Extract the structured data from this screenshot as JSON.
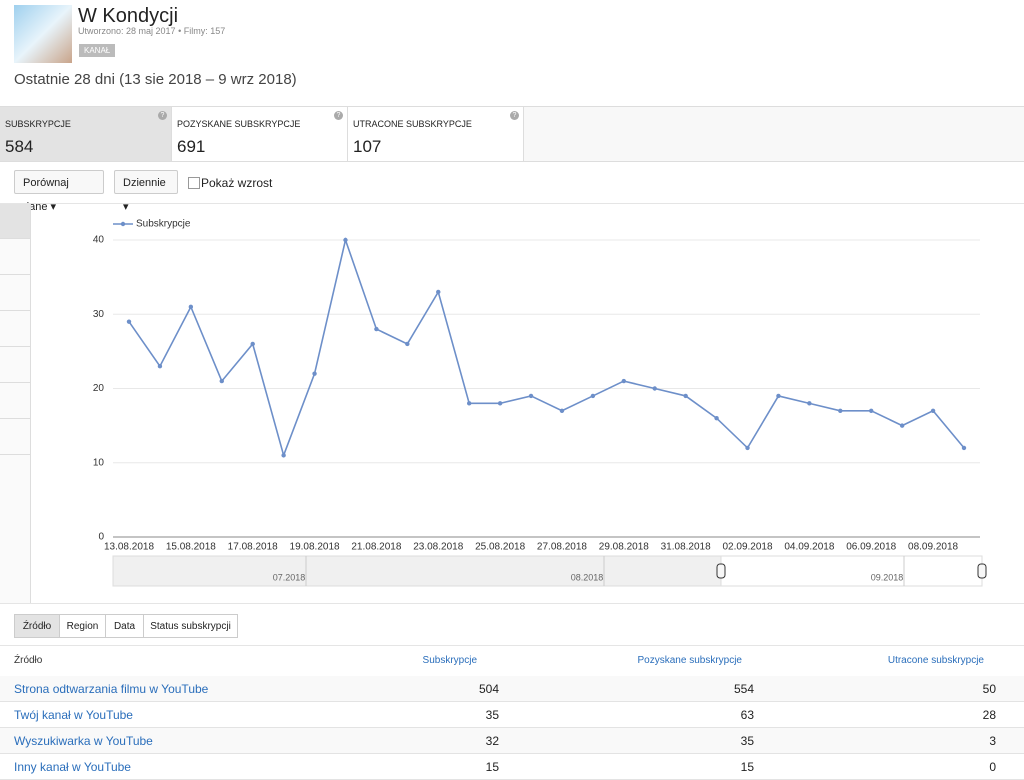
{
  "header": {
    "title": "W Kondycji",
    "created": "Utworzono: 28 maj 2017",
    "videos": "Filmy: 157",
    "badge": "KANAŁ",
    "period": "Ostatnie 28 dni (13 sie 2018 – 9 wrz 2018)"
  },
  "metrics": [
    {
      "label": "SUBSKRYPCJE",
      "value": "584"
    },
    {
      "label": "POZYSKANE SUBSKRYPCJE",
      "value": "691"
    },
    {
      "label": "UTRACONE SUBSKRYPCJE",
      "value": "107"
    }
  ],
  "controls": {
    "compare": "Porównaj dane",
    "interval": "Dziennie",
    "growth": "Pokaż wzrost"
  },
  "chart_data": {
    "type": "line",
    "categories": [
      "13.08.2018",
      null,
      "15.08.2018",
      null,
      "17.08.2018",
      null,
      "19.08.2018",
      null,
      "21.08.2018",
      null,
      "23.08.2018",
      null,
      "25.08.2018",
      null,
      "27.08.2018",
      null,
      "29.08.2018",
      null,
      "31.08.2018",
      null,
      "02.09.2018",
      null,
      "04.09.2018",
      null,
      "06.09.2018",
      null,
      "08.09.2018",
      null
    ],
    "series": [
      {
        "name": "Subskrypcje",
        "color": "#6d8fc9",
        "values": [
          29,
          23,
          31,
          21,
          26,
          11,
          22,
          40,
          28,
          26,
          33,
          18,
          18,
          19,
          17,
          19,
          21,
          20,
          19,
          16,
          12,
          19,
          18,
          17,
          17,
          15,
          17,
          12
        ]
      }
    ],
    "ylim": [
      0,
      40
    ],
    "yticks": [
      0,
      10,
      20,
      30,
      40
    ],
    "grid": true
  },
  "navigator": {
    "labels": [
      "07.2018",
      "08.2018",
      "09.2018"
    ]
  },
  "tabs": [
    "Źródło",
    "Region",
    "Data",
    "Status subskrypcji"
  ],
  "table": {
    "columns": [
      "Źródło",
      "Subskrypcje",
      "Pozyskane subskrypcje",
      "Utracone subskrypcje"
    ],
    "rows": [
      [
        "Strona odtwarzania filmu w YouTube",
        504,
        554,
        50
      ],
      [
        "Twój kanał w YouTube",
        35,
        63,
        28
      ],
      [
        "Wyszukiwarka w YouTube",
        32,
        35,
        3
      ],
      [
        "Inny kanał w YouTube",
        15,
        15,
        0
      ]
    ]
  }
}
